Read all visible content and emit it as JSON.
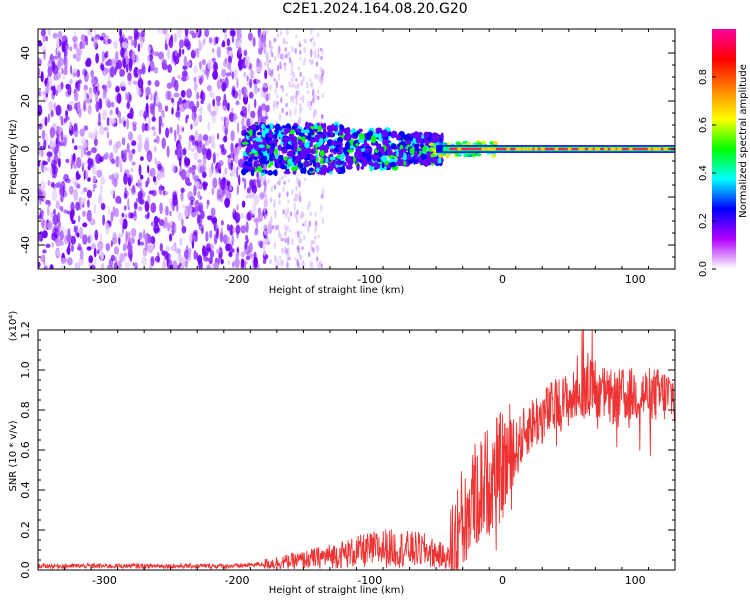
{
  "title": "C2E1.2024.164.08.20.G20",
  "chart_data": [
    {
      "type": "heatmap",
      "xlabel": "Height of straight line (km)",
      "ylabel": "Frequency (Hz)",
      "xlim": [
        -350,
        130
      ],
      "ylim": [
        -50,
        50
      ],
      "xticks": [
        -300,
        -200,
        -100,
        0,
        100
      ],
      "yticks": [
        -40,
        -20,
        0,
        20,
        40
      ],
      "colorbar": {
        "label": "Normalized spectral amplitude",
        "range": [
          0.0,
          1.0
        ],
        "ticks": [
          0.0,
          0.2,
          0.4,
          0.6,
          0.8
        ],
        "colors": [
          "#ffffff",
          "#b000ff",
          "#0000ff",
          "#00ffff",
          "#00ff00",
          "#ffff00",
          "#ff8000",
          "#ff0000",
          "#ff00a0"
        ]
      },
      "regions": [
        {
          "x_range": [
            -350,
            -180
          ],
          "freq_range": [
            -50,
            50
          ],
          "amplitude": 0.05
        },
        {
          "x_range": [
            -180,
            -130
          ],
          "freq_range": [
            -50,
            50
          ],
          "amplitude": 0.02
        },
        {
          "x_range": [
            -180,
            -50
          ],
          "freq_range": [
            -10,
            10
          ],
          "amplitude": 0.3
        },
        {
          "x_range": [
            -50,
            130
          ],
          "freq_range": [
            -1,
            1
          ],
          "amplitude": 0.9
        }
      ]
    },
    {
      "type": "line",
      "xlabel": "Height of straight line (km)",
      "ylabel": "SNR (10 * v/v)",
      "yscale_label": "(x10⁴)",
      "xlim": [
        -350,
        130
      ],
      "ylim": [
        0.0,
        1.2
      ],
      "xticks": [
        -300,
        -200,
        -100,
        0,
        100
      ],
      "yticks": [
        "0.0",
        "0.2",
        "0.4",
        "0.6",
        "0.8",
        "1.0",
        "1.2"
      ],
      "line_color": "#ee3333",
      "series_profile": {
        "x": [
          -350,
          -250,
          -200,
          -180,
          -150,
          -120,
          -90,
          -60,
          -40,
          -30,
          -20,
          -10,
          0,
          10,
          20,
          40,
          60,
          70,
          80,
          100,
          130
        ],
        "y": [
          0.02,
          0.02,
          0.02,
          0.03,
          0.05,
          0.08,
          0.11,
          0.1,
          0.06,
          0.25,
          0.38,
          0.45,
          0.52,
          0.6,
          0.72,
          0.82,
          0.88,
          0.92,
          0.86,
          0.88,
          0.87
        ]
      }
    }
  ]
}
